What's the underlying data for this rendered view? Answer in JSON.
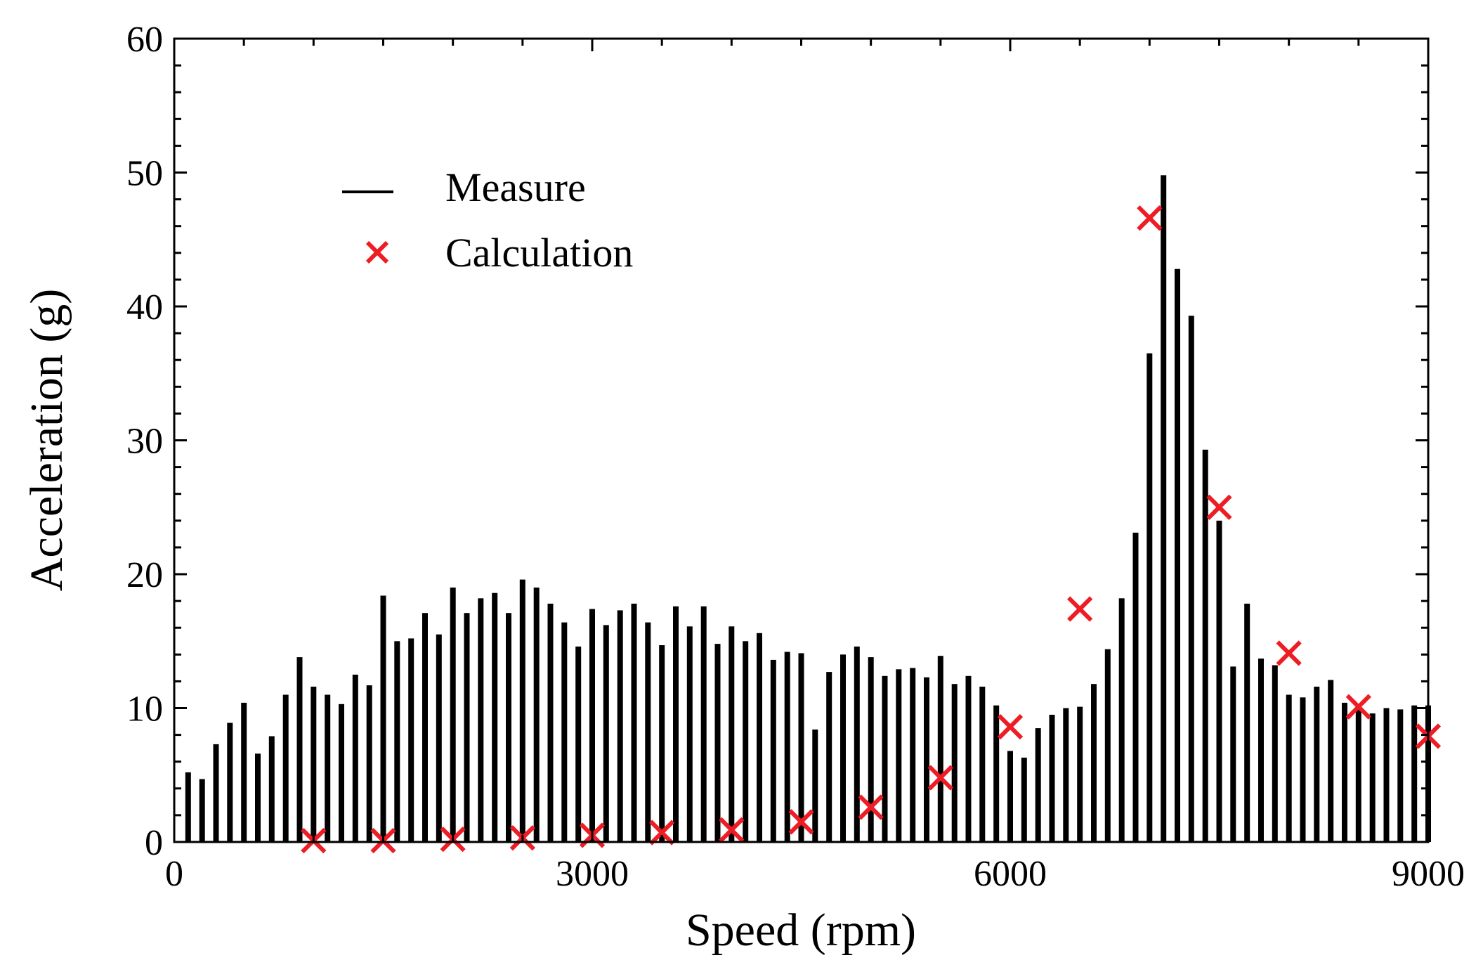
{
  "chart_data": {
    "type": "bar",
    "title": "",
    "xlabel": "Speed (rpm)",
    "ylabel": "Acceleration (g)",
    "xlim": [
      0,
      9000
    ],
    "ylim": [
      0,
      60
    ],
    "x_ticks": [
      0,
      3000,
      6000,
      9000
    ],
    "y_ticks": [
      0,
      10,
      20,
      30,
      40,
      50,
      60
    ],
    "x_tick_labels": [
      "0",
      "3000",
      "6000",
      "9000"
    ],
    "y_tick_labels": [
      "0",
      "10",
      "20",
      "30",
      "40",
      "50",
      "60"
    ],
    "legend_position": "upper-left",
    "grid": false,
    "series": [
      {
        "name": "Measure",
        "style": "bar",
        "color": "#000000",
        "x": [
          100,
          200,
          300,
          400,
          500,
          600,
          700,
          800,
          900,
          1000,
          1100,
          1200,
          1300,
          1400,
          1500,
          1600,
          1700,
          1800,
          1900,
          2000,
          2100,
          2200,
          2300,
          2400,
          2500,
          2600,
          2700,
          2800,
          2900,
          3000,
          3100,
          3200,
          3300,
          3400,
          3500,
          3600,
          3700,
          3800,
          3900,
          4000,
          4100,
          4200,
          4300,
          4400,
          4500,
          4600,
          4700,
          4800,
          4900,
          5000,
          5100,
          5200,
          5300,
          5400,
          5500,
          5600,
          5700,
          5800,
          5900,
          6000,
          6100,
          6200,
          6300,
          6400,
          6500,
          6600,
          6700,
          6800,
          6900,
          7000,
          7100,
          7200,
          7300,
          7400,
          7500,
          7600,
          7700,
          7800,
          7900,
          8000,
          8100,
          8200,
          8300,
          8400,
          8500,
          8600,
          8700,
          8800,
          8900,
          9000
        ],
        "values": [
          5.2,
          4.7,
          7.3,
          8.9,
          10.4,
          6.6,
          7.9,
          11.0,
          13.8,
          11.6,
          11.0,
          10.3,
          12.5,
          11.7,
          18.4,
          15.0,
          15.2,
          17.1,
          15.5,
          19.0,
          17.1,
          18.2,
          18.6,
          17.1,
          19.6,
          19.0,
          17.8,
          16.4,
          14.6,
          17.4,
          16.2,
          17.3,
          17.8,
          16.4,
          14.7,
          17.6,
          16.1,
          17.6,
          14.8,
          16.1,
          15.0,
          15.6,
          13.6,
          14.2,
          14.1,
          8.4,
          12.7,
          14.0,
          14.6,
          13.8,
          12.4,
          12.9,
          13.0,
          12.3,
          13.9,
          11.8,
          12.4,
          11.6,
          10.2,
          6.8,
          6.3,
          8.5,
          9.5,
          10.0,
          10.1,
          11.8,
          14.4,
          18.2,
          23.1,
          36.5,
          49.8,
          42.8,
          39.3,
          29.3,
          24.0,
          13.1,
          17.8,
          13.7,
          13.2,
          11.0,
          10.8,
          11.6,
          12.1,
          10.4,
          10.1,
          9.6,
          10.0,
          9.9,
          10.2,
          10.2
        ]
      },
      {
        "name": "Calculation",
        "style": "scatter",
        "marker": "x",
        "color": "#ee1c24",
        "x": [
          1000,
          1500,
          2000,
          2500,
          3000,
          3500,
          4000,
          4500,
          5000,
          5500,
          6000,
          6500,
          7000,
          7500,
          8000,
          8500,
          9000
        ],
        "values": [
          0.1,
          0.1,
          0.2,
          0.3,
          0.5,
          0.7,
          0.9,
          1.5,
          2.6,
          4.8,
          8.6,
          17.4,
          46.6,
          25.0,
          14.1,
          10.1,
          7.9
        ]
      }
    ]
  }
}
